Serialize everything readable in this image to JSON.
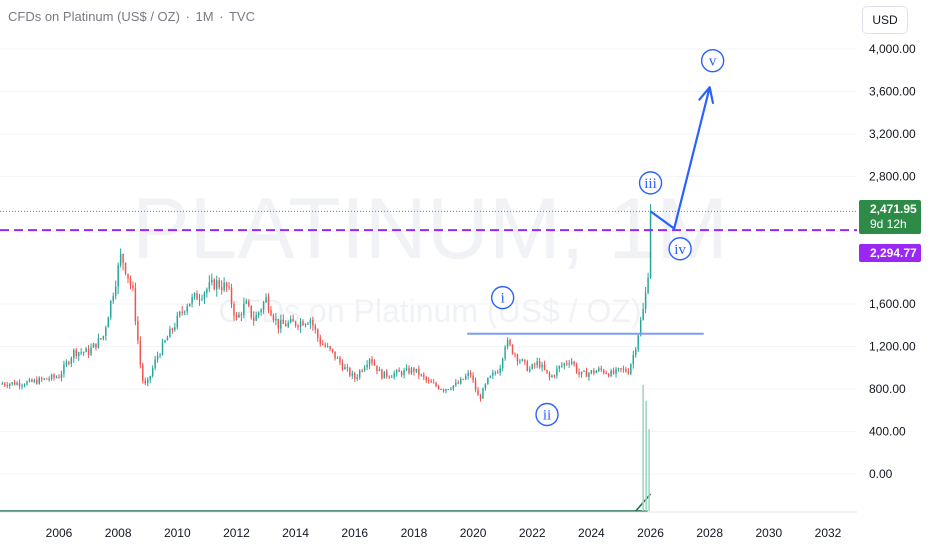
{
  "header": {
    "symbol": "CFDs on Platinum (US$ / OZ)",
    "interval": "1M",
    "source": "TVC",
    "separator": "·"
  },
  "currency_button": "USD",
  "watermark": {
    "line1": "PLATINUM, 1M",
    "line2": "CFDs on Platinum (US$ / OZ)"
  },
  "price_tags": {
    "last": "2,471.95",
    "countdown": "9d 12h",
    "line": "2,294.77",
    "last_color": "#2e8b47",
    "line_color": "#9c27f5"
  },
  "colors": {
    "up": "#26a69a",
    "down": "#ef5350",
    "annotation": "#2962ff",
    "horizontal_line": "#9c27f5",
    "support_line": "#7e9ef5"
  },
  "chart_data": {
    "type": "candlestick",
    "title": "CFDs on Platinum (US$ / OZ) · 1M · TVC",
    "y_tick_labels": [
      "4,000.00",
      "3,600.00",
      "3,200.00",
      "2,800.00",
      "1,600.00",
      "1,200.00",
      "800.00",
      "400.00",
      "0.00"
    ],
    "y_ticks": [
      4000,
      3600,
      3200,
      2800,
      1600,
      1200,
      800,
      400,
      0
    ],
    "x_tick_labels": [
      "2006",
      "2008",
      "2010",
      "2012",
      "2014",
      "2016",
      "2018",
      "2020",
      "2022",
      "2024",
      "2026",
      "2028",
      "2030",
      "2032"
    ],
    "x_ticks": [
      2006,
      2008,
      2010,
      2012,
      2014,
      2016,
      2018,
      2020,
      2022,
      2024,
      2026,
      2028,
      2030,
      2032
    ],
    "ylim": [
      -380,
      4250
    ],
    "xlim": [
      2004.1,
      2033.4
    ],
    "price_path": [
      [
        2004.0,
        850
      ],
      [
        2005.0,
        860
      ],
      [
        2006.0,
        920
      ],
      [
        2006.5,
        1150
      ],
      [
        2007.0,
        1150
      ],
      [
        2007.5,
        1300
      ],
      [
        2008.1,
        2060
      ],
      [
        2008.3,
        1900
      ],
      [
        2008.5,
        1700
      ],
      [
        2008.8,
        900
      ],
      [
        2008.95,
        820
      ],
      [
        2009.3,
        1100
      ],
      [
        2009.8,
        1350
      ],
      [
        2010.3,
        1600
      ],
      [
        2010.8,
        1700
      ],
      [
        2011.3,
        1800
      ],
      [
        2011.7,
        1750
      ],
      [
        2012.0,
        1450
      ],
      [
        2012.3,
        1600
      ],
      [
        2012.6,
        1450
      ],
      [
        2013.0,
        1650
      ],
      [
        2013.4,
        1400
      ],
      [
        2014.0,
        1420
      ],
      [
        2014.5,
        1460
      ],
      [
        2014.8,
        1250
      ],
      [
        2015.2,
        1150
      ],
      [
        2015.7,
        980
      ],
      [
        2016.0,
        900
      ],
      [
        2016.5,
        1100
      ],
      [
        2016.9,
        930
      ],
      [
        2017.5,
        950
      ],
      [
        2018.0,
        980
      ],
      [
        2018.5,
        860
      ],
      [
        2019.0,
        800
      ],
      [
        2019.5,
        850
      ],
      [
        2019.9,
        950
      ],
      [
        2020.2,
        700
      ],
      [
        2020.5,
        880
      ],
      [
        2020.9,
        1000
      ],
      [
        2021.1,
        1250
      ],
      [
        2021.5,
        1100
      ],
      [
        2021.9,
        980
      ],
      [
        2022.2,
        1050
      ],
      [
        2022.6,
        900
      ],
      [
        2022.9,
        1000
      ],
      [
        2023.3,
        1080
      ],
      [
        2023.6,
        930
      ],
      [
        2023.9,
        950
      ],
      [
        2024.3,
        980
      ],
      [
        2024.7,
        940
      ],
      [
        2025.0,
        980
      ],
      [
        2025.25,
        970
      ],
      [
        2025.45,
        1150
      ],
      [
        2025.6,
        1350
      ],
      [
        2025.8,
        1600
      ],
      [
        2025.95,
        2000
      ],
      [
        2026.0,
        2471.95
      ]
    ],
    "last_price": 2471.95,
    "horizontal_line_level": 2294.77,
    "support_line": {
      "level": 1320,
      "x_start": 2019.8,
      "x_end": 2027.8
    },
    "volume_spikes": [
      [
        2025.75,
        800
      ],
      [
        2025.85,
        700
      ],
      [
        2025.95,
        520
      ]
    ],
    "wave_projection": [
      [
        2026.0,
        2471.95
      ],
      [
        2026.8,
        2310
      ],
      [
        2028.0,
        3640
      ]
    ],
    "wave_labels": [
      {
        "text": "i",
        "x": 2021.0,
        "y": 1660
      },
      {
        "text": "ii",
        "x": 2022.5,
        "y": 560
      },
      {
        "text": "iii",
        "x": 2026.0,
        "y": 2740
      },
      {
        "text": "iv",
        "x": 2027.0,
        "y": 2120
      },
      {
        "text": "v",
        "x": 2028.1,
        "y": 3890
      }
    ]
  }
}
